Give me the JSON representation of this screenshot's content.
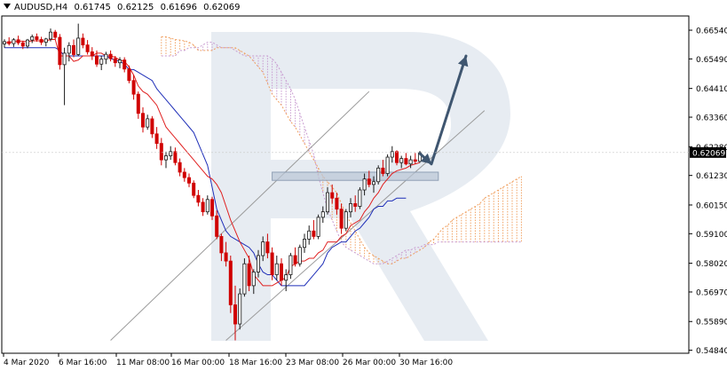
{
  "header": {
    "symbol": "AUDUSD,H4",
    "open": "0.61745",
    "high": "0.62125",
    "low": "0.61696",
    "close": "0.62069"
  },
  "chart_data": {
    "type": "candlestick",
    "symbol": "AUDUSD",
    "timeframe": "H4",
    "price_axis_labels": [
      "0.66540",
      "0.65490",
      "0.64410",
      "0.63360",
      "0.62280",
      "0.61230",
      "0.60150",
      "0.59100",
      "0.58020",
      "0.56970",
      "0.55890",
      "0.54840"
    ],
    "price_axis_values": [
      0.6654,
      0.6549,
      0.6441,
      0.6336,
      0.6228,
      0.6123,
      0.6015,
      0.591,
      0.5802,
      0.5697,
      0.5589,
      0.5484
    ],
    "current_price_label": "0.62069",
    "current_price": 0.62069,
    "ylim": [
      0.5473,
      0.6706
    ],
    "time_axis_labels": [
      "4 Mar 2020",
      "6 Mar 16:00",
      "11 Mar 08:00",
      "16 Mar 00:00",
      "18 Mar 16:00",
      "23 Mar 08:00",
      "26 Mar 00:00",
      "30 Mar 16:00"
    ],
    "candles": [
      [
        0.6604,
        0.6621,
        0.659,
        0.6612
      ],
      [
        0.6612,
        0.6628,
        0.6598,
        0.6605
      ],
      [
        0.6605,
        0.6625,
        0.6593,
        0.6619
      ],
      [
        0.6619,
        0.6634,
        0.66,
        0.6608
      ],
      [
        0.6608,
        0.6615,
        0.6585,
        0.6596
      ],
      [
        0.6596,
        0.6622,
        0.6588,
        0.6618
      ],
      [
        0.6618,
        0.6638,
        0.6607,
        0.663
      ],
      [
        0.663,
        0.6642,
        0.6612,
        0.662
      ],
      [
        0.662,
        0.663,
        0.66,
        0.661
      ],
      [
        0.661,
        0.6626,
        0.6595,
        0.6622
      ],
      [
        0.6622,
        0.666,
        0.6613,
        0.6647
      ],
      [
        0.6647,
        0.6655,
        0.662,
        0.6628
      ],
      [
        0.6628,
        0.664,
        0.651,
        0.6528
      ],
      [
        0.6528,
        0.659,
        0.638,
        0.657
      ],
      [
        0.657,
        0.661,
        0.654,
        0.6598
      ],
      [
        0.6598,
        0.662,
        0.6555,
        0.6565
      ],
      [
        0.6565,
        0.6678,
        0.656,
        0.6625
      ],
      [
        0.6625,
        0.6642,
        0.6588,
        0.66
      ],
      [
        0.66,
        0.6618,
        0.6565,
        0.6575
      ],
      [
        0.6575,
        0.6592,
        0.6545,
        0.656
      ],
      [
        0.656,
        0.658,
        0.652,
        0.653
      ],
      [
        0.653,
        0.656,
        0.6508,
        0.6548
      ],
      [
        0.6548,
        0.6575,
        0.653,
        0.6566
      ],
      [
        0.6566,
        0.658,
        0.654,
        0.655
      ],
      [
        0.655,
        0.656,
        0.652,
        0.6535
      ],
      [
        0.6535,
        0.6555,
        0.6515,
        0.6545
      ],
      [
        0.6545,
        0.6555,
        0.65,
        0.6512
      ],
      [
        0.6512,
        0.6525,
        0.646,
        0.647
      ],
      [
        0.647,
        0.649,
        0.64,
        0.642
      ],
      [
        0.642,
        0.643,
        0.633,
        0.635
      ],
      [
        0.635,
        0.6372,
        0.628,
        0.63
      ],
      [
        0.63,
        0.6345,
        0.629,
        0.633
      ],
      [
        0.633,
        0.634,
        0.626,
        0.6275
      ],
      [
        0.6275,
        0.63,
        0.622,
        0.624
      ],
      [
        0.624,
        0.626,
        0.616,
        0.618
      ],
      [
        0.618,
        0.621,
        0.615,
        0.6195
      ],
      [
        0.6195,
        0.623,
        0.618,
        0.621
      ],
      [
        0.621,
        0.6225,
        0.616,
        0.617
      ],
      [
        0.617,
        0.6185,
        0.612,
        0.6135
      ],
      [
        0.6135,
        0.615,
        0.61,
        0.6115
      ],
      [
        0.6115,
        0.613,
        0.608,
        0.6095
      ],
      [
        0.6095,
        0.6105,
        0.604,
        0.605
      ],
      [
        0.605,
        0.607,
        0.601,
        0.6025
      ],
      [
        0.6025,
        0.604,
        0.5975,
        0.599
      ],
      [
        0.599,
        0.605,
        0.598,
        0.6035
      ],
      [
        0.6035,
        0.6045,
        0.596,
        0.5975
      ],
      [
        0.5975,
        0.5995,
        0.589,
        0.59
      ],
      [
        0.59,
        0.591,
        0.581,
        0.584
      ],
      [
        0.584,
        0.588,
        0.579,
        0.581
      ],
      [
        0.581,
        0.583,
        0.562,
        0.565
      ],
      [
        0.565,
        0.572,
        0.552,
        0.558
      ],
      [
        0.558,
        0.571,
        0.556,
        0.569
      ],
      [
        0.569,
        0.582,
        0.568,
        0.58
      ],
      [
        0.58,
        0.583,
        0.57,
        0.572
      ],
      [
        0.572,
        0.578,
        0.569,
        0.577
      ],
      [
        0.577,
        0.585,
        0.575,
        0.583
      ],
      [
        0.583,
        0.59,
        0.581,
        0.588
      ],
      [
        0.588,
        0.591,
        0.582,
        0.584
      ],
      [
        0.584,
        0.586,
        0.574,
        0.576
      ],
      [
        0.576,
        0.583,
        0.574,
        0.58
      ],
      [
        0.58,
        0.582,
        0.572,
        0.574
      ],
      [
        0.574,
        0.578,
        0.57,
        0.576
      ],
      [
        0.576,
        0.584,
        0.5745,
        0.583
      ],
      [
        0.583,
        0.586,
        0.579,
        0.58
      ],
      [
        0.58,
        0.587,
        0.579,
        0.586
      ],
      [
        0.586,
        0.591,
        0.584,
        0.589
      ],
      [
        0.589,
        0.594,
        0.587,
        0.592
      ],
      [
        0.592,
        0.596,
        0.589,
        0.59
      ],
      [
        0.59,
        0.598,
        0.589,
        0.597
      ],
      [
        0.597,
        0.601,
        0.595,
        0.599
      ],
      [
        0.599,
        0.608,
        0.598,
        0.606
      ],
      [
        0.606,
        0.609,
        0.602,
        0.604
      ],
      [
        0.604,
        0.606,
        0.598,
        0.6
      ],
      [
        0.6,
        0.602,
        0.591,
        0.593
      ],
      [
        0.593,
        0.6,
        0.592,
        0.599
      ],
      [
        0.599,
        0.604,
        0.597,
        0.602
      ],
      [
        0.602,
        0.605,
        0.599,
        0.601
      ],
      [
        0.601,
        0.608,
        0.6,
        0.607
      ],
      [
        0.607,
        0.613,
        0.605,
        0.611
      ],
      [
        0.611,
        0.614,
        0.608,
        0.609
      ],
      [
        0.609,
        0.612,
        0.606,
        0.61
      ],
      [
        0.61,
        0.616,
        0.609,
        0.615
      ],
      [
        0.615,
        0.618,
        0.612,
        0.613
      ],
      [
        0.613,
        0.62,
        0.612,
        0.619
      ],
      [
        0.619,
        0.623,
        0.617,
        0.621
      ],
      [
        0.621,
        0.6215,
        0.616,
        0.617
      ],
      [
        0.617,
        0.6195,
        0.615,
        0.6185
      ],
      [
        0.6185,
        0.6205,
        0.616,
        0.6165
      ],
      [
        0.6165,
        0.6195,
        0.615,
        0.618
      ],
      [
        0.618,
        0.6205,
        0.6165,
        0.6175
      ],
      [
        0.61745,
        0.62125,
        0.61696,
        0.62069
      ]
    ],
    "tenkan": [
      0.6608,
      0.661,
      0.6612,
      0.6614,
      0.6614,
      0.6612,
      0.6615,
      0.6615,
      0.6615,
      0.6615,
      0.662,
      0.662,
      0.656,
      0.656,
      0.656,
      0.654,
      0.6545,
      0.656,
      0.656,
      0.656,
      0.657,
      0.657,
      0.656,
      0.656,
      0.6555,
      0.6545,
      0.654,
      0.652,
      0.649,
      0.645,
      0.643,
      0.642,
      0.64,
      0.638,
      0.634,
      0.63,
      0.628,
      0.626,
      0.624,
      0.622,
      0.62,
      0.618,
      0.616,
      0.614,
      0.612,
      0.611,
      0.609,
      0.606,
      0.601,
      0.596,
      0.592,
      0.588,
      0.585,
      0.582,
      0.576,
      0.574,
      0.572,
      0.572,
      0.572,
      0.573,
      0.574,
      0.575,
      0.579,
      0.58,
      0.581,
      0.581,
      0.582,
      0.582,
      0.584,
      0.585,
      0.588,
      0.588,
      0.588,
      0.59,
      0.591,
      0.594,
      0.595,
      0.596,
      0.599,
      0.601,
      0.604,
      0.606,
      0.609,
      0.611,
      0.613,
      0.614,
      0.6145,
      0.615,
      0.616,
      0.6165,
      0.617
    ],
    "kijun": [
      0.659,
      0.659,
      0.659,
      0.659,
      0.659,
      0.659,
      0.659,
      0.659,
      0.659,
      0.659,
      0.659,
      0.659,
      0.658,
      0.656,
      0.656,
      0.656,
      0.656,
      0.656,
      0.656,
      0.656,
      0.656,
      0.656,
      0.656,
      0.655,
      0.6545,
      0.654,
      0.653,
      0.651,
      0.651,
      0.65,
      0.649,
      0.648,
      0.647,
      0.644,
      0.642,
      0.64,
      0.638,
      0.636,
      0.634,
      0.632,
      0.63,
      0.628,
      0.624,
      0.62,
      0.616,
      0.608,
      0.6,
      0.596,
      0.592,
      0.59,
      0.589,
      0.588,
      0.587,
      0.586,
      0.584,
      0.58,
      0.577,
      0.576,
      0.576,
      0.574,
      0.572,
      0.572,
      0.572,
      0.572,
      0.572,
      0.572,
      0.574,
      0.576,
      0.578,
      0.58,
      0.584,
      0.586,
      0.587,
      0.588,
      0.588,
      0.59,
      0.592,
      0.593,
      0.595,
      0.597,
      0.6,
      0.601,
      0.601,
      0.603,
      0.603,
      0.604,
      0.604,
      0.604
    ],
    "cloud_span_a": [
      0.663,
      0.663,
      0.6625,
      0.662,
      0.6618,
      0.6615,
      0.661,
      0.66,
      0.658,
      0.658,
      0.658,
      0.658,
      0.659,
      0.659,
      0.659,
      0.659,
      0.659,
      0.658,
      0.657,
      0.656,
      0.654,
      0.652,
      0.65,
      0.646,
      0.642,
      0.64,
      0.638,
      0.635,
      0.632,
      0.63,
      0.627,
      0.624,
      0.621,
      0.618,
      0.615,
      0.612,
      0.61,
      0.608,
      0.606,
      0.602,
      0.598,
      0.595,
      0.592,
      0.589,
      0.586,
      0.584,
      0.583,
      0.582,
      0.581,
      0.58,
      0.58,
      0.581,
      0.582,
      0.582,
      0.583,
      0.584,
      0.585,
      0.586,
      0.588,
      0.589,
      0.591,
      0.593,
      0.594,
      0.596,
      0.597,
      0.598,
      0.599,
      0.6,
      0.601,
      0.602,
      0.604,
      0.605,
      0.606,
      0.607,
      0.608,
      0.609,
      0.61,
      0.611,
      0.612
    ],
    "cloud_span_b": [
      0.656,
      0.656,
      0.656,
      0.656,
      0.658,
      0.658,
      0.659,
      0.659,
      0.659,
      0.66,
      0.661,
      0.661,
      0.66,
      0.659,
      0.659,
      0.659,
      0.658,
      0.657,
      0.656,
      0.656,
      0.656,
      0.656,
      0.656,
      0.656,
      0.655,
      0.653,
      0.65,
      0.647,
      0.644,
      0.64,
      0.635,
      0.63,
      0.625,
      0.62,
      0.612,
      0.606,
      0.6,
      0.596,
      0.592,
      0.588,
      0.586,
      0.585,
      0.584,
      0.583,
      0.582,
      0.581,
      0.58,
      0.58,
      0.58,
      0.581,
      0.582,
      0.583,
      0.584,
      0.585,
      0.585,
      0.586,
      0.586,
      0.587,
      0.587,
      0.587,
      0.588,
      0.588,
      0.588,
      0.588,
      0.588,
      0.588,
      0.588,
      0.588,
      0.588,
      0.588,
      0.588,
      0.588,
      0.588,
      0.588,
      0.588,
      0.588,
      0.588,
      0.588,
      0.588
    ],
    "cloud_start_index": 34,
    "channel_lower": {
      "from": [
        0.552,
        48
      ],
      "to": [
        0.636,
        104
      ]
    },
    "channel_upper": {
      "from": [
        0.552,
        23
      ],
      "to": [
        0.643,
        79
      ]
    },
    "support_zone": {
      "from_index": 58,
      "to_index": 94,
      "top": 0.6135,
      "bottom": 0.6105
    },
    "forecast_arrow": {
      "points": [
        [
          0.6203,
          90
        ],
        [
          0.6165,
          92.5
        ],
        [
          0.656,
          100
        ]
      ]
    },
    "watermark": "R"
  }
}
